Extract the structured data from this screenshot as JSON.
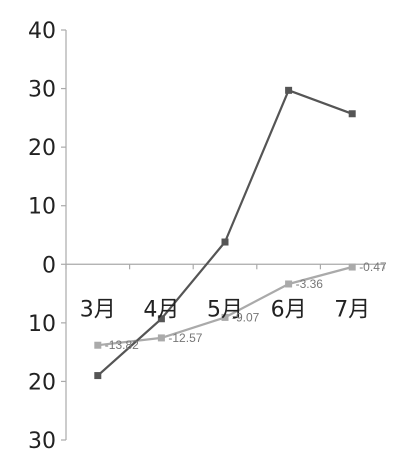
{
  "chart_data": {
    "type": "line",
    "title": "",
    "xlabel": "",
    "ylabel": "",
    "categories": [
      "3月",
      "4月",
      "5月",
      "6月",
      "7月"
    ],
    "ylim": [
      -30,
      40
    ],
    "ytick_values": [
      40,
      30,
      20,
      10,
      0,
      -10,
      -20,
      -30
    ],
    "ytick_labels": [
      "40",
      "30",
      "20",
      "10",
      "0",
      "10",
      "20",
      "30"
    ],
    "grid": false,
    "legend": "none",
    "series": [
      {
        "values": [
          -19,
          -9.3,
          3.8,
          29.7,
          25.7
        ],
        "color": "#555555",
        "marker": "square",
        "data_labels": [
          "",
          "",
          "",
          "",
          ""
        ]
      },
      {
        "values": [
          -13.82,
          -12.57,
          -9.07,
          -3.36,
          -0.47
        ],
        "color": "#aaaaaa",
        "marker": "square",
        "data_labels": [
          "-13.82",
          "-12.57",
          "-9.07",
          "-3.36",
          "-0.47"
        ]
      }
    ]
  }
}
